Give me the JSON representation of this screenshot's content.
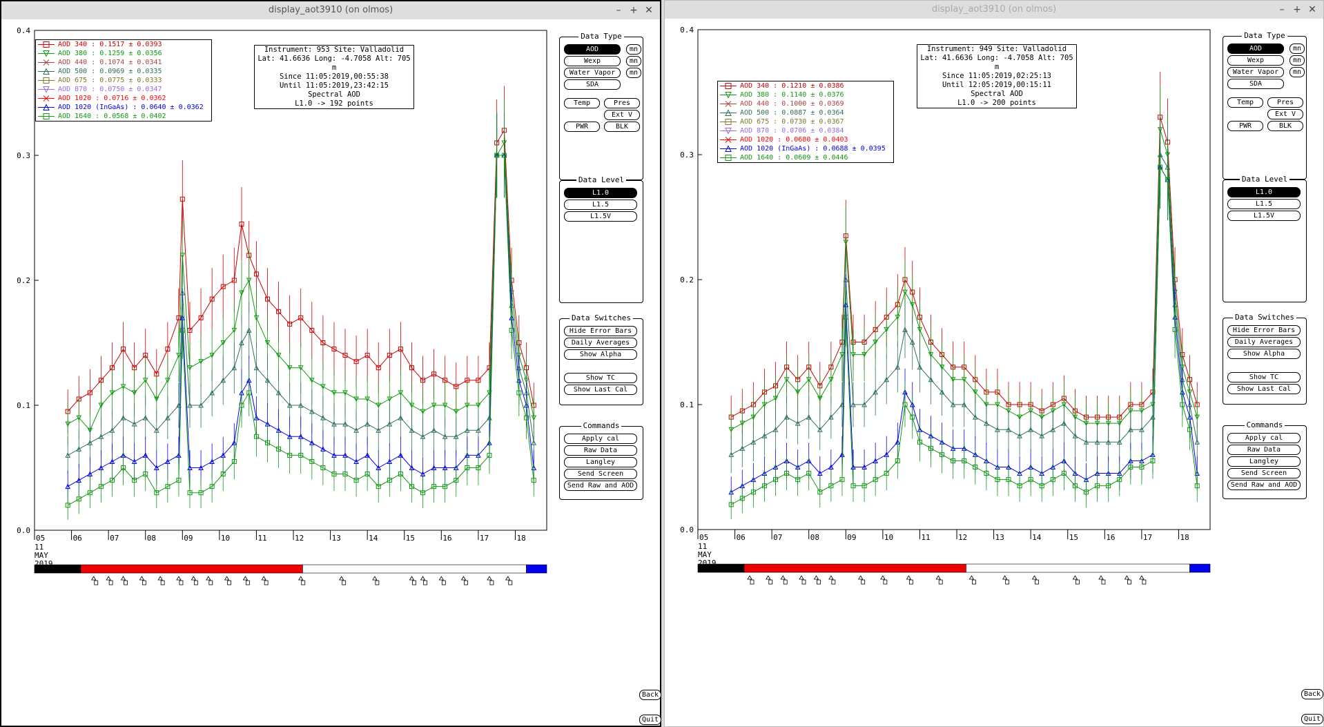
{
  "left": {
    "title": "display_aot3910 (on olmos)",
    "info": [
      "Instrument: 953 Site: Valladolid",
      "Lat: 41.6636 Long: -4.7058 Alt: 705 m",
      "Since 11:05:2019,00:55:38",
      "Until 11:05:2019,23:42:15",
      "Spectral AOD",
      "L1.0 -> 192 points"
    ],
    "legend": [
      {
        "text": "AOD 340   : 0.1517 ± 0.0393",
        "color": "#cc0000",
        "marker": "square"
      },
      {
        "text": "AOD 380   : 0.1259 ± 0.0356",
        "color": "#119911",
        "marker": "tri-down"
      },
      {
        "text": "AOD 440   : 0.1074 ± 0.0341",
        "color": "#b04040",
        "marker": "x"
      },
      {
        "text": "AOD 500   : 0.0969 ± 0.0335",
        "color": "#2e6e5e",
        "marker": "tri-up"
      },
      {
        "text": "AOD 675   : 0.0775 ± 0.0333",
        "color": "#7a7a2a",
        "marker": "square"
      },
      {
        "text": "AOD 870   : 0.0750 ± 0.0347",
        "color": "#9a6ae0",
        "marker": "tri-down"
      },
      {
        "text": "AOD 1020   : 0.0716 ± 0.0362",
        "color": "#ff0000",
        "marker": "x"
      },
      {
        "text": "AOD 1020 (InGaAs)   : 0.0640 ± 0.0362",
        "color": "#0000ee",
        "marker": "tri-up"
      },
      {
        "text": "AOD 1640   : 0.0568 ± 0.0402",
        "color": "#119911",
        "marker": "square"
      }
    ]
  },
  "right": {
    "title": "display_aot3910 (on olmos)",
    "info": [
      "Instrument: 949 Site: Valladolid",
      "Lat: 41.6636 Long: -4.7058 Alt: 705 m",
      "Since 11:05:2019,02:25:13",
      "Until 12:05:2019,00:15:11",
      "Spectral AOD",
      "L1.0 -> 200 points"
    ],
    "legend": [
      {
        "text": "AOD 340   : 0.1210 ± 0.0386",
        "color": "#cc0000",
        "marker": "square"
      },
      {
        "text": "AOD 380   : 0.1140 ± 0.0376",
        "color": "#119911",
        "marker": "tri-down"
      },
      {
        "text": "AOD 440   : 0.1000 ± 0.0369",
        "color": "#b04040",
        "marker": "x"
      },
      {
        "text": "AOD 500   : 0.0887 ± 0.0364",
        "color": "#2e6e5e",
        "marker": "tri-up"
      },
      {
        "text": "AOD 675   : 0.0730 ± 0.0367",
        "color": "#7a7a2a",
        "marker": "square"
      },
      {
        "text": "AOD 870   : 0.0706 ± 0.0384",
        "color": "#9a6ae0",
        "marker": "tri-down"
      },
      {
        "text": "AOD 1020   : 0.0680 ± 0.0403",
        "color": "#ff0000",
        "marker": "x"
      },
      {
        "text": "AOD 1020 (InGaAs)   : 0.0688 ± 0.0395",
        "color": "#0000ee",
        "marker": "tri-up"
      },
      {
        "text": "AOD 1640   : 0.0609 ± 0.0446",
        "color": "#119911",
        "marker": "square"
      }
    ]
  },
  "axes": {
    "yticks": [
      "0.0",
      "0.1",
      "0.2",
      "0.3",
      "0.4"
    ],
    "xticks": [
      "05",
      "06",
      "07",
      "08",
      "09",
      "10",
      "11",
      "12",
      "13",
      "14",
      "15",
      "16",
      "17",
      "18"
    ],
    "xdate": [
      "11",
      "MAY",
      "2019"
    ]
  },
  "panels": {
    "data_type": {
      "title": "Data Type",
      "aod": "AOD",
      "wexp": "Wexp",
      "water": "Water Vapor",
      "sda": "SDA",
      "mn": "mn",
      "temp": "Temp",
      "pres": "Pres",
      "extv": "Ext V",
      "pwr": "PWR",
      "blk": "BLK"
    },
    "data_level": {
      "title": "Data Level",
      "l10": "L1.0",
      "l15": "L1.5",
      "l15v": "L1.5V"
    },
    "switches": {
      "title": "Data Switches",
      "hide": "Hide Error Bars",
      "daily": "Daily Averages",
      "alpha": "Show Alpha",
      "tc": "Show TC",
      "lastcal": "Show Last Cal"
    },
    "commands": {
      "title": "Commands",
      "apply": "Apply cal",
      "raw": "Raw Data",
      "langley": "Langley",
      "send": "Send Screen",
      "sendraw": "Send Raw and AOD"
    }
  },
  "side": {
    "back": "Back",
    "quit": "Quit"
  },
  "chart_data": [
    {
      "type": "line",
      "title": "Spectral AOD",
      "ylim": [
        0,
        0.4
      ],
      "x": [
        5.9,
        6.2,
        6.5,
        6.8,
        7.1,
        7.4,
        7.7,
        8.0,
        8.3,
        8.6,
        8.9,
        9.0,
        9.2,
        9.5,
        9.8,
        10.1,
        10.4,
        10.6,
        10.8,
        11.0,
        11.3,
        11.6,
        11.9,
        12.2,
        12.5,
        12.8,
        13.1,
        13.4,
        13.7,
        14.0,
        14.3,
        14.6,
        14.9,
        15.2,
        15.5,
        15.8,
        16.1,
        16.4,
        16.7,
        17.0,
        17.3,
        17.5,
        17.7,
        17.9,
        18.1,
        18.3,
        18.5
      ],
      "series": [
        {
          "name": "AOD 340",
          "values": [
            0.095,
            0.105,
            0.11,
            0.12,
            0.13,
            0.145,
            0.13,
            0.14,
            0.125,
            0.145,
            0.17,
            0.265,
            0.16,
            0.17,
            0.185,
            0.195,
            0.2,
            0.245,
            0.22,
            0.205,
            0.185,
            0.175,
            0.165,
            0.17,
            0.16,
            0.15,
            0.145,
            0.14,
            0.135,
            0.14,
            0.13,
            0.14,
            0.145,
            0.13,
            0.12,
            0.125,
            0.12,
            0.115,
            0.12,
            0.12,
            0.13,
            0.31,
            0.32,
            0.2,
            0.15,
            0.13,
            0.1
          ]
        },
        {
          "name": "AOD 380",
          "values": [
            0.085,
            0.09,
            0.08,
            0.1,
            0.11,
            0.115,
            0.11,
            0.12,
            0.105,
            0.12,
            0.14,
            0.22,
            0.13,
            0.135,
            0.14,
            0.15,
            0.16,
            0.19,
            0.2,
            0.17,
            0.15,
            0.14,
            0.13,
            0.13,
            0.12,
            0.115,
            0.11,
            0.11,
            0.105,
            0.105,
            0.1,
            0.105,
            0.11,
            0.1,
            0.095,
            0.1,
            0.1,
            0.095,
            0.1,
            0.1,
            0.11,
            0.3,
            0.31,
            0.19,
            0.14,
            0.12,
            0.09
          ]
        },
        {
          "name": "AOD 500",
          "values": [
            0.06,
            0.065,
            0.07,
            0.075,
            0.08,
            0.09,
            0.085,
            0.09,
            0.08,
            0.09,
            0.1,
            0.19,
            0.1,
            0.1,
            0.11,
            0.12,
            0.13,
            0.15,
            0.16,
            0.13,
            0.12,
            0.11,
            0.1,
            0.1,
            0.095,
            0.09,
            0.085,
            0.085,
            0.08,
            0.085,
            0.08,
            0.085,
            0.09,
            0.08,
            0.075,
            0.08,
            0.075,
            0.075,
            0.08,
            0.08,
            0.09,
            0.3,
            0.3,
            0.18,
            0.13,
            0.11,
            0.07
          ]
        },
        {
          "name": "AOD 1020",
          "values": [
            0.035,
            0.04,
            0.045,
            0.05,
            0.055,
            0.06,
            0.055,
            0.06,
            0.05,
            0.055,
            0.06,
            0.17,
            0.05,
            0.05,
            0.055,
            0.06,
            0.07,
            0.11,
            0.12,
            0.09,
            0.085,
            0.08,
            0.075,
            0.075,
            0.07,
            0.065,
            0.06,
            0.06,
            0.055,
            0.06,
            0.05,
            0.055,
            0.06,
            0.05,
            0.045,
            0.05,
            0.05,
            0.05,
            0.06,
            0.06,
            0.07,
            0.3,
            0.3,
            0.17,
            0.12,
            0.1,
            0.05
          ]
        },
        {
          "name": "AOD 1640",
          "values": [
            0.02,
            0.025,
            0.03,
            0.035,
            0.04,
            0.05,
            0.04,
            0.045,
            0.03,
            0.035,
            0.04,
            0.16,
            0.03,
            0.03,
            0.035,
            0.045,
            0.055,
            0.1,
            0.11,
            0.075,
            0.07,
            0.065,
            0.06,
            0.06,
            0.055,
            0.05,
            0.045,
            0.045,
            0.04,
            0.045,
            0.035,
            0.04,
            0.045,
            0.035,
            0.03,
            0.035,
            0.035,
            0.04,
            0.05,
            0.05,
            0.06,
            0.3,
            0.3,
            0.16,
            0.11,
            0.09,
            0.04
          ]
        }
      ]
    },
    {
      "type": "line",
      "title": "Spectral AOD",
      "ylim": [
        0,
        0.4
      ],
      "x": [
        5.9,
        6.2,
        6.5,
        6.8,
        7.1,
        7.4,
        7.7,
        8.0,
        8.3,
        8.6,
        8.9,
        9.0,
        9.2,
        9.5,
        9.8,
        10.1,
        10.4,
        10.6,
        10.8,
        11.0,
        11.3,
        11.6,
        11.9,
        12.2,
        12.5,
        12.8,
        13.1,
        13.4,
        13.7,
        14.0,
        14.3,
        14.6,
        14.9,
        15.2,
        15.5,
        15.8,
        16.1,
        16.4,
        16.7,
        17.0,
        17.3,
        17.5,
        17.7,
        17.9,
        18.1,
        18.3,
        18.5
      ],
      "series": [
        {
          "name": "AOD 340",
          "values": [
            0.09,
            0.095,
            0.1,
            0.11,
            0.115,
            0.13,
            0.12,
            0.13,
            0.115,
            0.13,
            0.15,
            0.235,
            0.15,
            0.15,
            0.16,
            0.17,
            0.18,
            0.2,
            0.19,
            0.17,
            0.15,
            0.14,
            0.13,
            0.13,
            0.12,
            0.11,
            0.11,
            0.1,
            0.1,
            0.1,
            0.095,
            0.1,
            0.105,
            0.095,
            0.09,
            0.09,
            0.09,
            0.09,
            0.1,
            0.1,
            0.11,
            0.33,
            0.31,
            0.2,
            0.14,
            0.12,
            0.1
          ]
        },
        {
          "name": "AOD 380",
          "values": [
            0.08,
            0.085,
            0.09,
            0.1,
            0.105,
            0.12,
            0.11,
            0.12,
            0.105,
            0.12,
            0.14,
            0.23,
            0.14,
            0.14,
            0.15,
            0.16,
            0.17,
            0.19,
            0.18,
            0.16,
            0.14,
            0.13,
            0.12,
            0.12,
            0.11,
            0.1,
            0.1,
            0.095,
            0.09,
            0.095,
            0.09,
            0.095,
            0.1,
            0.09,
            0.085,
            0.085,
            0.085,
            0.085,
            0.095,
            0.095,
            0.1,
            0.32,
            0.3,
            0.19,
            0.13,
            0.11,
            0.09
          ]
        },
        {
          "name": "AOD 500",
          "values": [
            0.06,
            0.065,
            0.07,
            0.075,
            0.08,
            0.09,
            0.085,
            0.09,
            0.08,
            0.09,
            0.1,
            0.2,
            0.1,
            0.1,
            0.11,
            0.12,
            0.13,
            0.16,
            0.15,
            0.13,
            0.12,
            0.11,
            0.1,
            0.1,
            0.09,
            0.085,
            0.08,
            0.08,
            0.075,
            0.08,
            0.075,
            0.08,
            0.085,
            0.075,
            0.07,
            0.07,
            0.07,
            0.07,
            0.08,
            0.08,
            0.09,
            0.3,
            0.29,
            0.18,
            0.12,
            0.1,
            0.07
          ]
        },
        {
          "name": "AOD 1020",
          "values": [
            0.03,
            0.035,
            0.04,
            0.045,
            0.05,
            0.055,
            0.05,
            0.055,
            0.045,
            0.05,
            0.06,
            0.18,
            0.05,
            0.05,
            0.055,
            0.06,
            0.07,
            0.11,
            0.1,
            0.08,
            0.075,
            0.07,
            0.065,
            0.065,
            0.06,
            0.055,
            0.05,
            0.05,
            0.045,
            0.05,
            0.045,
            0.05,
            0.055,
            0.045,
            0.04,
            0.045,
            0.045,
            0.045,
            0.055,
            0.055,
            0.06,
            0.29,
            0.28,
            0.17,
            0.11,
            0.09,
            0.045
          ]
        },
        {
          "name": "AOD 1640",
          "values": [
            0.02,
            0.025,
            0.03,
            0.035,
            0.04,
            0.045,
            0.04,
            0.045,
            0.03,
            0.035,
            0.04,
            0.17,
            0.035,
            0.035,
            0.04,
            0.045,
            0.055,
            0.1,
            0.09,
            0.07,
            0.065,
            0.06,
            0.055,
            0.055,
            0.05,
            0.045,
            0.04,
            0.04,
            0.035,
            0.04,
            0.035,
            0.04,
            0.045,
            0.035,
            0.03,
            0.035,
            0.035,
            0.04,
            0.05,
            0.05,
            0.055,
            0.29,
            0.28,
            0.16,
            0.1,
            0.08,
            0.035
          ]
        }
      ]
    }
  ]
}
